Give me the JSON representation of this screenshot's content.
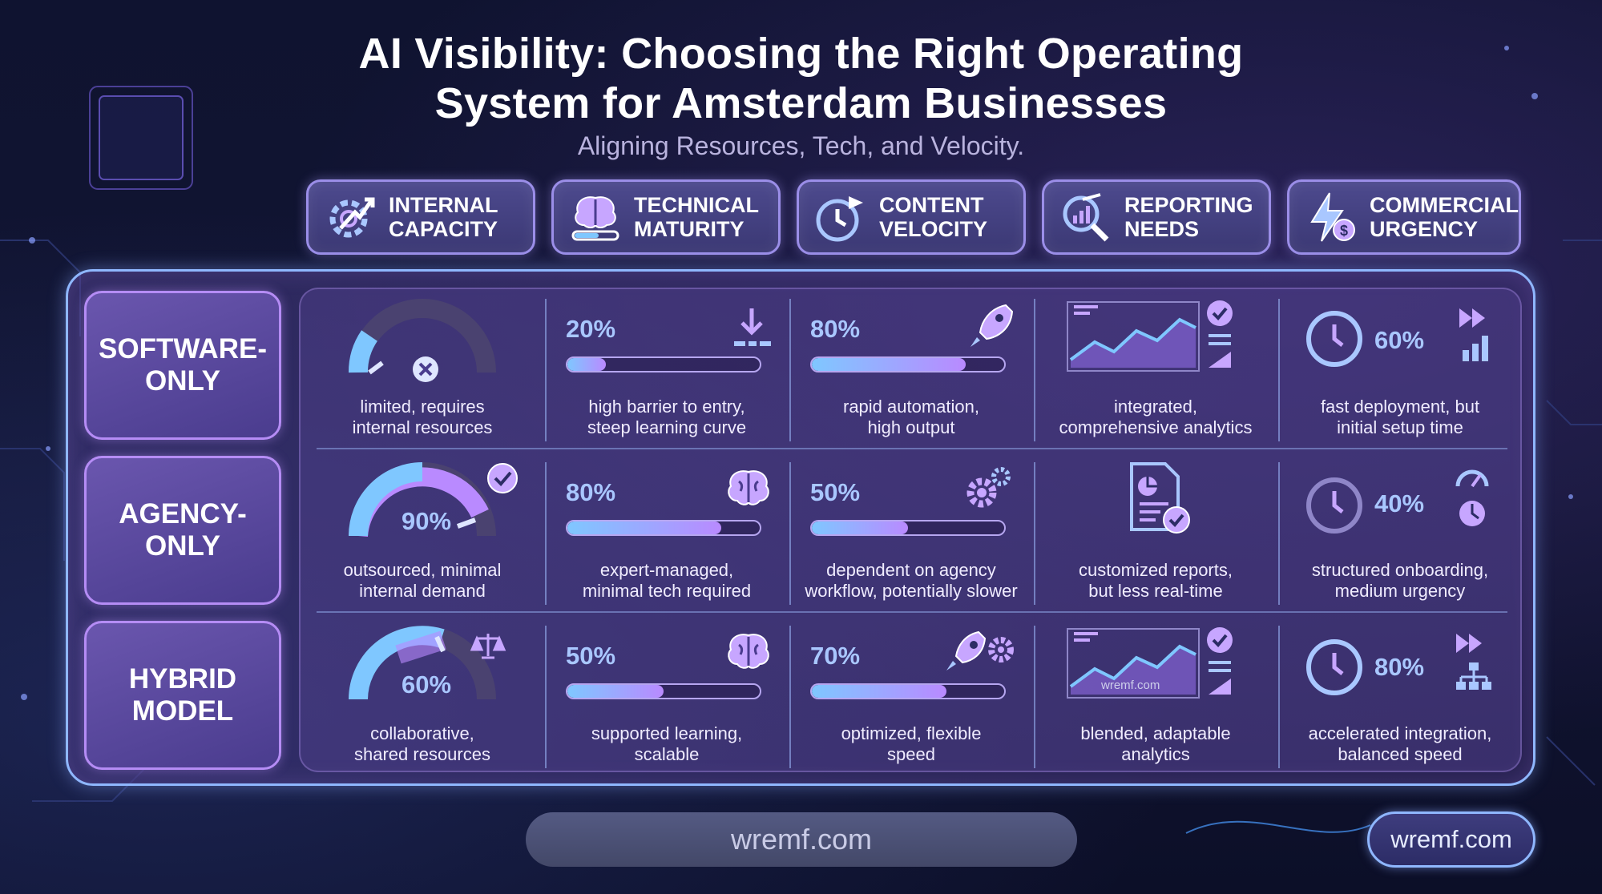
{
  "title_line1": "AI Visibility: Choosing the Right Operating",
  "title_line2": "System for Amsterdam Businesses",
  "subtitle": "Aligning Resources, Tech, and Velocity.",
  "columns": [
    {
      "label": "INTERNAL\nCAPACITY",
      "icon": "gear-arrow-icon"
    },
    {
      "label": "TECHNICAL\nMATURITY",
      "icon": "brain-slider-icon"
    },
    {
      "label": "CONTENT\nVELOCITY",
      "icon": "clock-arrow-icon"
    },
    {
      "label": "REPORTING\nNEEDS",
      "icon": "chart-magnifier-icon"
    },
    {
      "label": "COMMERCIAL\nURGENCY",
      "icon": "lightning-dollar-icon"
    }
  ],
  "rows": [
    {
      "label": "SOFTWARE-\nONLY",
      "internal_capacity": {
        "value": 0.15,
        "badge": "x",
        "caption": "limited, requires\ninternal resources"
      },
      "technical_maturity": {
        "percent": "20%",
        "value": 0.2,
        "icon": "download-icon",
        "caption": "high barrier to entry,\nsteep learning curve"
      },
      "content_velocity": {
        "percent": "80%",
        "value": 0.8,
        "icon": "rocket-icon",
        "caption": "rapid automation,\nhigh output"
      },
      "reporting_needs": {
        "icon": "dashboard-check-icon",
        "caption": "integrated,\ncomprehensive analytics"
      },
      "commercial_urgency": {
        "percent": "60%",
        "icon": "fast-forward-icon",
        "caption": "fast deployment, but\ninitial setup time"
      }
    },
    {
      "label": "AGENCY-\nONLY",
      "internal_capacity": {
        "percent": "90%",
        "value": 0.9,
        "badge": "check",
        "caption": "outsourced, minimal\ninternal demand"
      },
      "technical_maturity": {
        "percent": "80%",
        "value": 0.8,
        "icon": "brain-icon",
        "caption": "expert-managed,\nminimal tech required"
      },
      "content_velocity": {
        "percent": "50%",
        "value": 0.5,
        "icon": "gears-icon",
        "caption": "dependent on agency\nworkflow, potentially slower"
      },
      "reporting_needs": {
        "icon": "report-check-icon",
        "caption": "customized reports,\nbut less real-time"
      },
      "commercial_urgency": {
        "percent": "40%",
        "icon": "gauge-clock-icon",
        "caption": "structured onboarding,\nmedium urgency"
      }
    },
    {
      "label": "HYBRID\nMODEL",
      "internal_capacity": {
        "percent": "60%",
        "value": 0.6,
        "badge": "scales",
        "caption": "collaborative,\nshared resources"
      },
      "technical_maturity": {
        "percent": "50%",
        "value": 0.5,
        "icon": "brain-icon",
        "caption": "supported learning,\nscalable"
      },
      "content_velocity": {
        "percent": "70%",
        "value": 0.7,
        "icon": "rocket-gear-icon",
        "caption": "optimized, flexible\nspeed"
      },
      "reporting_needs": {
        "icon": "dashboard-check-icon",
        "watermark": "wremf.com",
        "caption": "blended, adaptable\nanalytics"
      },
      "commercial_urgency": {
        "percent": "80%",
        "icon": "fast-forward-network-icon",
        "caption": "accelerated integration,\nbalanced speed"
      }
    }
  ],
  "footer_url": "wremf.com",
  "footer_badge": "wremf.com",
  "colors": {
    "accent_blue": "#8fb7ff",
    "accent_purple": "#b98aff",
    "bar_start": "#7fc7ff"
  }
}
